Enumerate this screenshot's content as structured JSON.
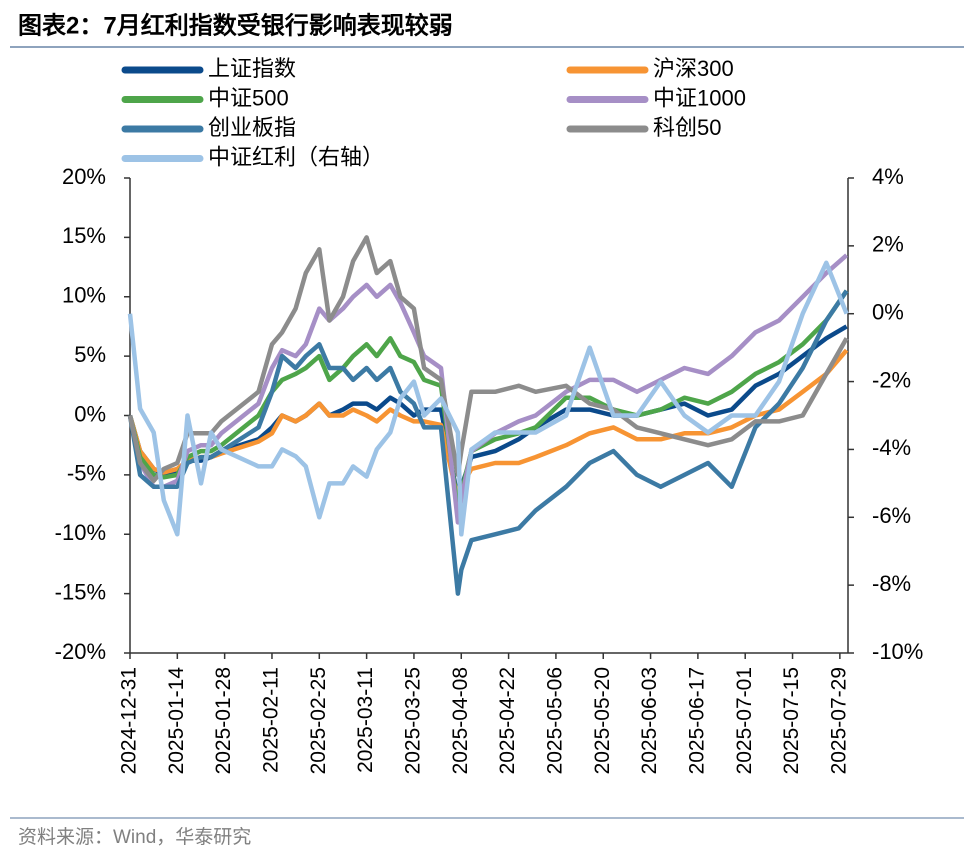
{
  "chart_data": {
    "type": "line",
    "title": "图表2：7月红利指数受银行影响表现较弱",
    "source": "资料来源：Wind，华泰研究",
    "x": [
      "2024-12-31",
      "2025-01-03",
      "2025-01-07",
      "2025-01-10",
      "2025-01-14",
      "2025-01-17",
      "2025-01-21",
      "2025-01-24",
      "2025-01-27",
      "2025-02-07",
      "2025-02-11",
      "2025-02-14",
      "2025-02-18",
      "2025-02-21",
      "2025-02-25",
      "2025-02-28",
      "2025-03-04",
      "2025-03-07",
      "2025-03-11",
      "2025-03-14",
      "2025-03-18",
      "2025-03-21",
      "2025-03-25",
      "2025-03-28",
      "2025-04-02",
      "2025-04-07",
      "2025-04-08",
      "2025-04-11",
      "2025-04-18",
      "2025-04-25",
      "2025-04-30",
      "2025-05-09",
      "2025-05-16",
      "2025-05-23",
      "2025-05-30",
      "2025-06-06",
      "2025-06-13",
      "2025-06-20",
      "2025-06-27",
      "2025-07-04",
      "2025-07-11",
      "2025-07-18",
      "2025-07-25",
      "2025-07-31"
    ],
    "series": [
      {
        "name": "上证指数",
        "color": "#0b4a8b",
        "values": [
          0,
          -3,
          -4.5,
          -5,
          -4.8,
          -3.8,
          -3.8,
          -3.5,
          -3,
          -2,
          -1,
          0,
          -0.5,
          0,
          1,
          0,
          0.5,
          1,
          1,
          0.5,
          1.5,
          1,
          0,
          0.5,
          0.5,
          -7,
          -6,
          -3.5,
          -3,
          -2,
          -1,
          0.5,
          0.5,
          0,
          0,
          0.5,
          1,
          0,
          0.5,
          2.5,
          3.5,
          5,
          6.5,
          7.5
        ]
      },
      {
        "name": "沪深300",
        "color": "#f79433",
        "values": [
          0,
          -3,
          -4.5,
          -4.8,
          -4.5,
          -3.8,
          -3.5,
          -3.5,
          -3.2,
          -2.2,
          -1.5,
          0,
          -0.5,
          0,
          1,
          0,
          0,
          0.5,
          0,
          -0.5,
          0.5,
          0,
          -0.5,
          -0.5,
          -0.8,
          -7,
          -6,
          -4.5,
          -4,
          -4,
          -3.5,
          -2.5,
          -1.5,
          -1,
          -2,
          -2,
          -1.5,
          -1.5,
          -1,
          0,
          0.5,
          2,
          3.5,
          5.5
        ]
      },
      {
        "name": "中证500",
        "color": "#4ea54a",
        "values": [
          0,
          -3.5,
          -5,
          -5.2,
          -5,
          -3.5,
          -3,
          -3,
          -2.5,
          0,
          2,
          3,
          3.5,
          4,
          5,
          3,
          4,
          5,
          6,
          5,
          6.5,
          5,
          4.5,
          3,
          2.5,
          -8,
          -6.5,
          -3,
          -2,
          -1.5,
          -1,
          1.5,
          1.5,
          0.5,
          0,
          0.5,
          1.5,
          1,
          2,
          3.5,
          4.5,
          6,
          8,
          10.5
        ]
      },
      {
        "name": "中证1000",
        "color": "#a68fc6",
        "values": [
          0,
          -4,
          -6,
          -6,
          -5.5,
          -3,
          -2.5,
          -2.5,
          -1.5,
          1,
          4,
          5.5,
          5,
          6,
          9,
          8,
          9,
          10,
          11,
          10,
          11,
          9.5,
          7,
          5,
          4,
          -9,
          -7,
          -3,
          -1.5,
          -0.5,
          0,
          2,
          3,
          3,
          2,
          3,
          4,
          3.5,
          5,
          7,
          8,
          10,
          12,
          13.5
        ]
      },
      {
        "name": "创业板指",
        "color": "#3c7aa4",
        "values": [
          0,
          -5,
          -6,
          -6,
          -6,
          -4,
          -3.5,
          -3.5,
          -3,
          -1,
          2,
          5,
          4,
          5,
          6,
          4,
          4,
          3,
          4,
          3,
          4,
          2,
          1,
          -1,
          -1,
          -15,
          -13,
          -10.5,
          -10,
          -9.5,
          -8,
          -6,
          -4,
          -3,
          -5,
          -6,
          -5,
          -4,
          -6,
          -1,
          1,
          4,
          8,
          10.5
        ]
      },
      {
        "name": "科创50",
        "color": "#8c8c8c",
        "values": [
          0,
          -4,
          -5.5,
          -4.5,
          -4,
          -1.5,
          -1.5,
          -1.5,
          -0.5,
          2,
          6,
          7,
          9,
          12,
          14,
          8,
          10,
          13,
          15,
          12,
          13,
          10,
          9,
          4,
          3,
          -5,
          -3,
          2,
          2,
          2.5,
          2,
          2.5,
          1,
          0.5,
          -1,
          -1.5,
          -2,
          -2.5,
          -2,
          -0.5,
          -0.5,
          0,
          3.5,
          6.5
        ]
      },
      {
        "name": "中证红利（右轴）",
        "color": "#9dc3e6",
        "axis": "y2",
        "values": [
          0,
          -2.8,
          -3.5,
          -5.5,
          -6.5,
          -3,
          -5,
          -3.5,
          -4,
          -4.5,
          -4.5,
          -4,
          -4.2,
          -4.5,
          -6,
          -5,
          -5,
          -4.5,
          -4.8,
          -4,
          -3.5,
          -2.5,
          -2,
          -3,
          -2.5,
          -3.5,
          -6.5,
          -4,
          -3.5,
          -3.5,
          -3.5,
          -3,
          -1,
          -3,
          -3,
          -2,
          -3,
          -3.5,
          -3,
          -3,
          -2,
          0,
          1.5,
          0
        ]
      }
    ],
    "xlim": [
      "2024-12-31",
      "2025-08-01"
    ],
    "xticks": [
      "2024-12-31",
      "2025-01-14",
      "2025-01-28",
      "2025-02-11",
      "2025-02-25",
      "2025-03-11",
      "2025-03-25",
      "2025-04-08",
      "2025-04-22",
      "2025-05-06",
      "2025-05-20",
      "2025-06-03",
      "2025-06-17",
      "2025-07-01",
      "2025-07-15",
      "2025-07-29"
    ],
    "ylim": [
      -20,
      20
    ],
    "yticks": [
      {
        "value": 20,
        "label": "20%"
      },
      {
        "value": 15,
        "label": "15%"
      },
      {
        "value": 10,
        "label": "10%"
      },
      {
        "value": 5,
        "label": "5%"
      },
      {
        "value": 0,
        "label": "0%"
      },
      {
        "value": -5,
        "label": "-5%"
      },
      {
        "value": -10,
        "label": "-10%"
      },
      {
        "value": -15,
        "label": "-15%"
      },
      {
        "value": -20,
        "label": "-20%"
      }
    ],
    "y2lim": [
      -10,
      4
    ],
    "y2ticks": [
      {
        "value": 4,
        "label": "4%"
      },
      {
        "value": 2,
        "label": "2%"
      },
      {
        "value": 0,
        "label": "0%"
      },
      {
        "value": -2,
        "label": "-2%"
      },
      {
        "value": -4,
        "label": "-4%"
      },
      {
        "value": -6,
        "label": "-6%"
      },
      {
        "value": -8,
        "label": "-8%"
      },
      {
        "value": -10,
        "label": "-10%"
      }
    ]
  }
}
